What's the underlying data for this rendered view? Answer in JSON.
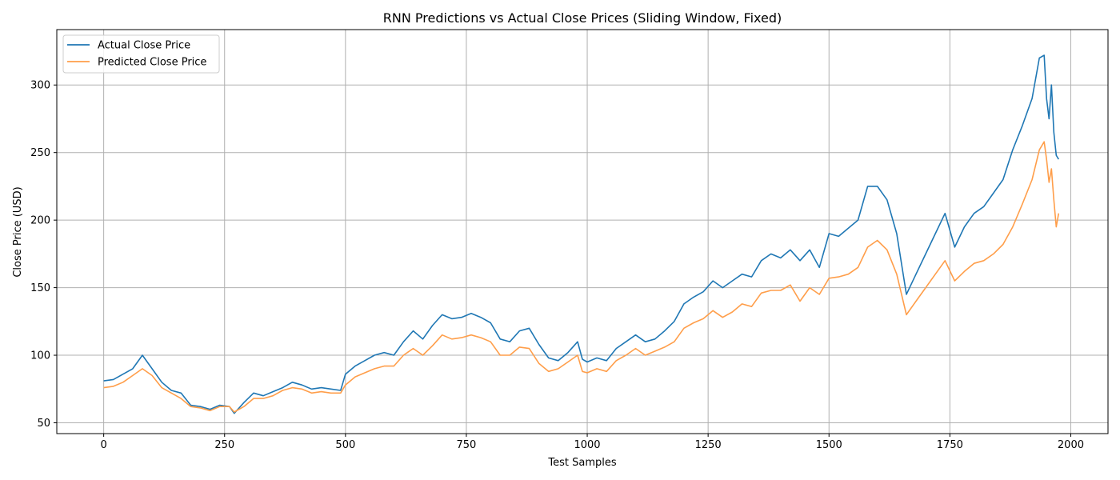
{
  "chart_data": {
    "type": "line",
    "title": "RNN Predictions vs Actual Close Prices (Sliding Window, Fixed)",
    "xlabel": "Test Samples",
    "ylabel": "Close Price (USD)",
    "xlim": [
      -97,
      2077
    ],
    "ylim": [
      42,
      341
    ],
    "xticks": [
      0,
      250,
      500,
      750,
      1000,
      1250,
      1500,
      1750,
      2000
    ],
    "yticks": [
      50,
      100,
      150,
      200,
      250,
      300
    ],
    "grid": true,
    "legend_position": "top-left",
    "series": [
      {
        "name": "Actual Close Price",
        "color": "#1f77b4",
        "points": [
          [
            0,
            81
          ],
          [
            20,
            82
          ],
          [
            40,
            86
          ],
          [
            60,
            90
          ],
          [
            80,
            100
          ],
          [
            100,
            90
          ],
          [
            120,
            80
          ],
          [
            140,
            74
          ],
          [
            160,
            72
          ],
          [
            180,
            63
          ],
          [
            200,
            62
          ],
          [
            220,
            60
          ],
          [
            240,
            63
          ],
          [
            260,
            62
          ],
          [
            270,
            57
          ],
          [
            290,
            65
          ],
          [
            310,
            72
          ],
          [
            330,
            70
          ],
          [
            350,
            73
          ],
          [
            370,
            76
          ],
          [
            390,
            80
          ],
          [
            410,
            78
          ],
          [
            430,
            75
          ],
          [
            450,
            76
          ],
          [
            470,
            75
          ],
          [
            490,
            74
          ],
          [
            500,
            86
          ],
          [
            520,
            92
          ],
          [
            540,
            96
          ],
          [
            560,
            100
          ],
          [
            580,
            102
          ],
          [
            600,
            100
          ],
          [
            620,
            110
          ],
          [
            640,
            118
          ],
          [
            660,
            112
          ],
          [
            680,
            122
          ],
          [
            700,
            130
          ],
          [
            720,
            127
          ],
          [
            740,
            128
          ],
          [
            760,
            131
          ],
          [
            780,
            128
          ],
          [
            800,
            124
          ],
          [
            820,
            112
          ],
          [
            840,
            110
          ],
          [
            860,
            118
          ],
          [
            880,
            120
          ],
          [
            900,
            108
          ],
          [
            920,
            98
          ],
          [
            940,
            96
          ],
          [
            960,
            102
          ],
          [
            980,
            110
          ],
          [
            990,
            97
          ],
          [
            1000,
            95
          ],
          [
            1020,
            98
          ],
          [
            1040,
            96
          ],
          [
            1060,
            105
          ],
          [
            1080,
            110
          ],
          [
            1100,
            115
          ],
          [
            1120,
            110
          ],
          [
            1140,
            112
          ],
          [
            1160,
            118
          ],
          [
            1180,
            125
          ],
          [
            1200,
            138
          ],
          [
            1220,
            143
          ],
          [
            1240,
            147
          ],
          [
            1260,
            155
          ],
          [
            1280,
            150
          ],
          [
            1300,
            155
          ],
          [
            1320,
            160
          ],
          [
            1340,
            158
          ],
          [
            1360,
            170
          ],
          [
            1380,
            175
          ],
          [
            1400,
            172
          ],
          [
            1420,
            178
          ],
          [
            1440,
            170
          ],
          [
            1460,
            178
          ],
          [
            1480,
            165
          ],
          [
            1500,
            190
          ],
          [
            1520,
            188
          ],
          [
            1540,
            194
          ],
          [
            1560,
            200
          ],
          [
            1580,
            225
          ],
          [
            1600,
            225
          ],
          [
            1620,
            215
          ],
          [
            1640,
            190
          ],
          [
            1660,
            145
          ],
          [
            1680,
            160
          ],
          [
            1700,
            175
          ],
          [
            1720,
            190
          ],
          [
            1740,
            205
          ],
          [
            1760,
            180
          ],
          [
            1780,
            195
          ],
          [
            1800,
            205
          ],
          [
            1820,
            210
          ],
          [
            1840,
            220
          ],
          [
            1860,
            230
          ],
          [
            1880,
            252
          ],
          [
            1900,
            270
          ],
          [
            1920,
            290
          ],
          [
            1935,
            320
          ],
          [
            1945,
            322
          ],
          [
            1950,
            290
          ],
          [
            1955,
            275
          ],
          [
            1960,
            300
          ],
          [
            1965,
            265
          ],
          [
            1970,
            248
          ],
          [
            1975,
            245
          ]
        ]
      },
      {
        "name": "Predicted Close Price",
        "color": "#ff9e4a",
        "points": [
          [
            0,
            76
          ],
          [
            20,
            77
          ],
          [
            40,
            80
          ],
          [
            60,
            85
          ],
          [
            80,
            90
          ],
          [
            100,
            85
          ],
          [
            120,
            76
          ],
          [
            140,
            72
          ],
          [
            160,
            68
          ],
          [
            180,
            62
          ],
          [
            200,
            61
          ],
          [
            220,
            59
          ],
          [
            240,
            62
          ],
          [
            260,
            62
          ],
          [
            270,
            58
          ],
          [
            290,
            62
          ],
          [
            310,
            68
          ],
          [
            330,
            68
          ],
          [
            350,
            70
          ],
          [
            370,
            74
          ],
          [
            390,
            76
          ],
          [
            410,
            75
          ],
          [
            430,
            72
          ],
          [
            450,
            73
          ],
          [
            470,
            72
          ],
          [
            490,
            72
          ],
          [
            500,
            78
          ],
          [
            520,
            84
          ],
          [
            540,
            87
          ],
          [
            560,
            90
          ],
          [
            580,
            92
          ],
          [
            600,
            92
          ],
          [
            620,
            100
          ],
          [
            640,
            105
          ],
          [
            660,
            100
          ],
          [
            680,
            107
          ],
          [
            700,
            115
          ],
          [
            720,
            112
          ],
          [
            740,
            113
          ],
          [
            760,
            115
          ],
          [
            780,
            113
          ],
          [
            800,
            110
          ],
          [
            820,
            100
          ],
          [
            840,
            100
          ],
          [
            860,
            106
          ],
          [
            880,
            105
          ],
          [
            900,
            94
          ],
          [
            920,
            88
          ],
          [
            940,
            90
          ],
          [
            960,
            95
          ],
          [
            980,
            100
          ],
          [
            990,
            88
          ],
          [
            1000,
            87
          ],
          [
            1020,
            90
          ],
          [
            1040,
            88
          ],
          [
            1060,
            96
          ],
          [
            1080,
            100
          ],
          [
            1100,
            105
          ],
          [
            1120,
            100
          ],
          [
            1140,
            103
          ],
          [
            1160,
            106
          ],
          [
            1180,
            110
          ],
          [
            1200,
            120
          ],
          [
            1220,
            124
          ],
          [
            1240,
            127
          ],
          [
            1260,
            133
          ],
          [
            1280,
            128
          ],
          [
            1300,
            132
          ],
          [
            1320,
            138
          ],
          [
            1340,
            136
          ],
          [
            1360,
            146
          ],
          [
            1380,
            148
          ],
          [
            1400,
            148
          ],
          [
            1420,
            152
          ],
          [
            1440,
            140
          ],
          [
            1460,
            150
          ],
          [
            1480,
            145
          ],
          [
            1500,
            157
          ],
          [
            1520,
            158
          ],
          [
            1540,
            160
          ],
          [
            1560,
            165
          ],
          [
            1580,
            180
          ],
          [
            1600,
            185
          ],
          [
            1620,
            178
          ],
          [
            1640,
            160
          ],
          [
            1660,
            130
          ],
          [
            1680,
            140
          ],
          [
            1700,
            150
          ],
          [
            1720,
            160
          ],
          [
            1740,
            170
          ],
          [
            1760,
            155
          ],
          [
            1780,
            162
          ],
          [
            1800,
            168
          ],
          [
            1820,
            170
          ],
          [
            1840,
            175
          ],
          [
            1860,
            182
          ],
          [
            1880,
            195
          ],
          [
            1900,
            212
          ],
          [
            1920,
            230
          ],
          [
            1935,
            252
          ],
          [
            1945,
            258
          ],
          [
            1950,
            245
          ],
          [
            1955,
            228
          ],
          [
            1960,
            238
          ],
          [
            1965,
            215
          ],
          [
            1970,
            195
          ],
          [
            1975,
            205
          ]
        ]
      }
    ]
  }
}
